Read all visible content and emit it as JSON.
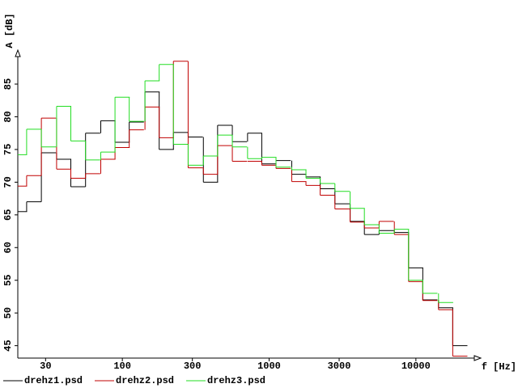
{
  "chart_data": {
    "type": "step",
    "ylabel": "A [dB]",
    "xlabel": "f [Hz]",
    "x": [
      20,
      25,
      31.5,
      40,
      50,
      63,
      80,
      100,
      125,
      160,
      200,
      250,
      315,
      400,
      500,
      630,
      800,
      1000,
      1250,
      1600,
      2000,
      2500,
      3150,
      4000,
      5000,
      6300,
      8000,
      10000,
      12500,
      16000,
      20000
    ],
    "series": [
      {
        "name": "drehz1.psd",
        "color": "#000000",
        "values": [
          65.5,
          67.0,
          74.5,
          73.5,
          69.3,
          77.5,
          79.4,
          76.1,
          79.2,
          83.8,
          75.0,
          77.6,
          76.9,
          70.0,
          78.7,
          76.2,
          77.5,
          72.8,
          73.3,
          71.2,
          70.8,
          69.0,
          66.7,
          64.0,
          62.0,
          62.6,
          62.3,
          56.9,
          52.0,
          50.8,
          45.0
        ]
      },
      {
        "name": "drehz2.psd",
        "color": "#c00000",
        "values": [
          69.4,
          71.0,
          79.8,
          72.0,
          70.6,
          71.3,
          73.5,
          75.3,
          78.0,
          81.5,
          76.8,
          88.5,
          72.2,
          71.2,
          75.6,
          73.2,
          73.2,
          72.6,
          72.1,
          70.1,
          69.5,
          68.0,
          65.9,
          63.9,
          63.0,
          64.0,
          62.0,
          54.8,
          51.9,
          50.5,
          43.4
        ]
      },
      {
        "name": "drehz3.psd",
        "color": "#22dd22",
        "values": [
          74.2,
          78.1,
          75.4,
          81.6,
          76.3,
          73.4,
          74.6,
          83.0,
          79.3,
          85.5,
          88.0,
          75.8,
          72.6,
          74.0,
          77.2,
          75.4,
          73.6,
          73.8,
          72.3,
          71.9,
          70.6,
          69.8,
          68.6,
          66.0,
          63.5,
          62.2,
          62.8,
          55.0,
          53.0,
          51.6,
          null
        ]
      }
    ],
    "xlim": [
      19.4,
      26300
    ],
    "ylim": [
      43.1,
      89.7
    ],
    "xscale": "log",
    "xticks": [
      30,
      100,
      300,
      1000,
      3000,
      10000
    ],
    "yticks": [
      45,
      50,
      55,
      60,
      65,
      70,
      75,
      80,
      85
    ]
  }
}
